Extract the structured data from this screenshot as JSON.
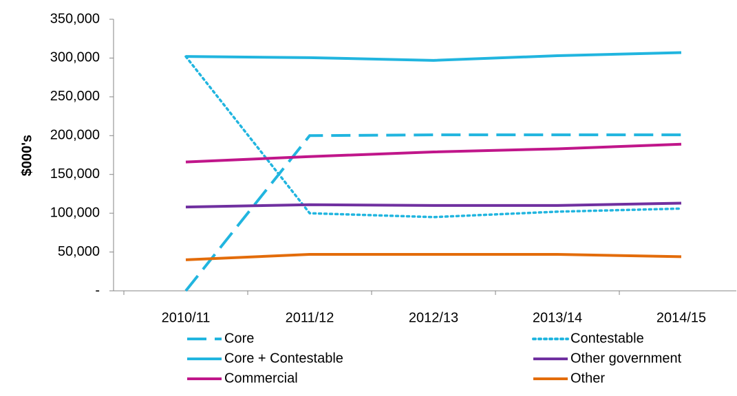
{
  "chart_data": {
    "type": "line",
    "ylabel": "$000's",
    "categories": [
      "2010/11",
      "2011/12",
      "2012/13",
      "2013/14",
      "2014/15"
    ],
    "series": [
      {
        "name": "Core",
        "color": "#21b5df",
        "dash": "dashed",
        "values": [
          0,
          200000,
          201000,
          201000,
          201000
        ]
      },
      {
        "name": "Contestable",
        "color": "#21b5df",
        "dash": "dotted",
        "values": [
          302000,
          100000,
          95000,
          102000,
          106000
        ]
      },
      {
        "name": "Core + Contestable",
        "color": "#21b5df",
        "dash": "solid",
        "values": [
          302000,
          300500,
          297000,
          303000,
          307000
        ]
      },
      {
        "name": "Other government",
        "color": "#7030a0",
        "dash": "solid",
        "values": [
          108000,
          111000,
          110000,
          110000,
          113000
        ]
      },
      {
        "name": "Commercial",
        "color": "#c0168a",
        "dash": "solid",
        "values": [
          166000,
          173000,
          179000,
          183000,
          189000
        ]
      },
      {
        "name": "Other",
        "color": "#e36c0a",
        "dash": "solid",
        "values": [
          40000,
          47000,
          47000,
          47000,
          44000
        ]
      }
    ],
    "ylim": [
      0,
      350000
    ],
    "yticks": [
      {
        "value": 0,
        "label": "-"
      },
      {
        "value": 50000,
        "label": "50,000"
      },
      {
        "value": 100000,
        "label": "100,000"
      },
      {
        "value": 150000,
        "label": "150,000"
      },
      {
        "value": 200000,
        "label": "200,000"
      },
      {
        "value": 250000,
        "label": "250,000"
      },
      {
        "value": 300000,
        "label": "300,000"
      },
      {
        "value": 350000,
        "label": "350,000"
      }
    ],
    "grid": false,
    "legend": "bottom"
  }
}
